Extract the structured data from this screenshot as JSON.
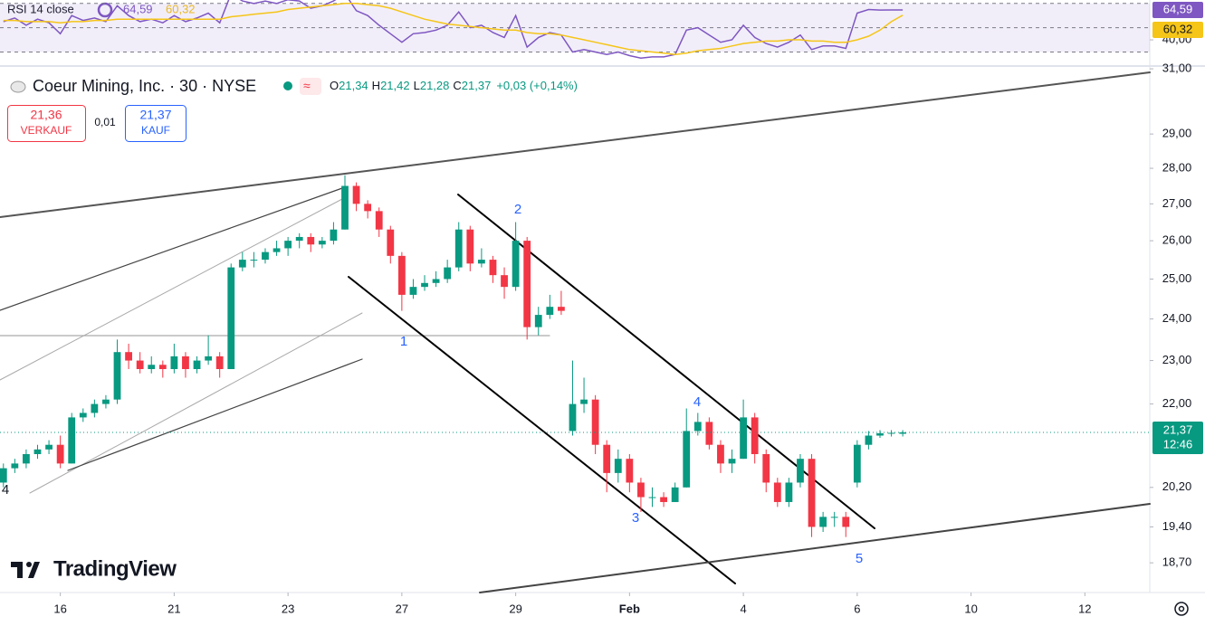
{
  "chart_data": {
    "type": "candlestick",
    "symbol": "Coeur Mining, Inc. · 30 · NYSE",
    "legend": {
      "o": "O",
      "open": "21,34",
      "h": "H",
      "high": "21,42",
      "l": "L",
      "low": "21,28",
      "c": "C",
      "close": "21,37",
      "change": "+0,03 (+0,14%)"
    },
    "sell": {
      "price": "21,36",
      "label": "VERKAUF"
    },
    "spread": "0,01",
    "buy": {
      "price": "21,37",
      "label": "KAUF"
    },
    "last_price_label": "21,37",
    "countdown": "12:46",
    "up_color": "#089981",
    "down_color": "#f23645",
    "log_scale": true,
    "xlim": [
      -0.3,
      100.7
    ],
    "xticks": [
      {
        "value": 5,
        "label": "16"
      },
      {
        "value": 15,
        "label": "21"
      },
      {
        "value": 25,
        "label": "23"
      },
      {
        "value": 35,
        "label": "27"
      },
      {
        "value": 45,
        "label": "29"
      },
      {
        "value": 55,
        "label": "Feb"
      },
      {
        "value": 65,
        "label": "4"
      },
      {
        "value": 75,
        "label": "6"
      },
      {
        "value": 85,
        "label": "10"
      },
      {
        "value": 95,
        "label": "12"
      }
    ],
    "ylim": [
      18.14,
      31.06
    ],
    "yticks": [
      {
        "value": 18.7,
        "label": "18,70"
      },
      {
        "value": 19.4,
        "label": "19,40"
      },
      {
        "value": 20.2,
        "label": "20,20"
      },
      {
        "value": 22,
        "label": "22,00"
      },
      {
        "value": 23,
        "label": "23,00"
      },
      {
        "value": 24,
        "label": "24,00"
      },
      {
        "value": 25,
        "label": "25,00"
      },
      {
        "value": 26,
        "label": "26,00"
      },
      {
        "value": 27,
        "label": "27,00"
      },
      {
        "value": 28,
        "label": "28,00"
      },
      {
        "value": 29,
        "label": "29,00"
      },
      {
        "value": 31,
        "label": "31,00"
      }
    ],
    "ohlc": [
      [
        20.3,
        20.7,
        20.2,
        20.6
      ],
      [
        20.6,
        20.8,
        20.5,
        20.7
      ],
      [
        20.7,
        21.0,
        20.6,
        20.9
      ],
      [
        20.9,
        21.1,
        20.8,
        21.0
      ],
      [
        21.0,
        21.2,
        20.9,
        21.1
      ],
      [
        21.1,
        21.3,
        20.6,
        20.7
      ],
      [
        20.7,
        21.8,
        20.7,
        21.7
      ],
      [
        21.7,
        21.9,
        21.6,
        21.8
      ],
      [
        21.8,
        22.1,
        21.7,
        22.0
      ],
      [
        22.0,
        22.2,
        21.9,
        22.1
      ],
      [
        22.1,
        23.5,
        22.0,
        23.2
      ],
      [
        23.2,
        23.4,
        22.8,
        23.0
      ],
      [
        23.0,
        23.2,
        22.7,
        22.8
      ],
      [
        22.8,
        23.1,
        22.7,
        22.9
      ],
      [
        22.9,
        23.0,
        22.6,
        22.8
      ],
      [
        22.8,
        23.4,
        22.7,
        23.1
      ],
      [
        23.1,
        23.2,
        22.6,
        22.8
      ],
      [
        22.8,
        23.1,
        22.7,
        23.0
      ],
      [
        23.0,
        23.6,
        22.9,
        23.1
      ],
      [
        23.1,
        23.2,
        22.6,
        22.8
      ],
      [
        22.8,
        25.4,
        22.8,
        25.3
      ],
      [
        25.3,
        25.7,
        25.2,
        25.5
      ],
      [
        25.5,
        25.7,
        25.3,
        25.5
      ],
      [
        25.5,
        25.8,
        25.4,
        25.7
      ],
      [
        25.7,
        26.0,
        25.6,
        25.8
      ],
      [
        25.8,
        26.1,
        25.6,
        26.0
      ],
      [
        26.0,
        26.2,
        25.8,
        26.1
      ],
      [
        26.1,
        26.2,
        25.7,
        25.9
      ],
      [
        25.9,
        26.1,
        25.8,
        26.0
      ],
      [
        26.0,
        26.5,
        25.9,
        26.3
      ],
      [
        26.3,
        27.8,
        26.3,
        27.5
      ],
      [
        27.5,
        27.6,
        26.8,
        27.0
      ],
      [
        27.0,
        27.1,
        26.6,
        26.8
      ],
      [
        26.8,
        26.9,
        26.1,
        26.3
      ],
      [
        26.3,
        26.4,
        25.4,
        25.6
      ],
      [
        25.6,
        25.7,
        24.2,
        24.6
      ],
      [
        24.6,
        25.0,
        24.5,
        24.8
      ],
      [
        24.8,
        25.1,
        24.7,
        24.9
      ],
      [
        24.9,
        25.2,
        24.8,
        25.0
      ],
      [
        25.0,
        25.5,
        24.9,
        25.3
      ],
      [
        25.3,
        26.5,
        25.2,
        26.3
      ],
      [
        26.3,
        26.4,
        25.2,
        25.4
      ],
      [
        25.4,
        25.8,
        25.3,
        25.5
      ],
      [
        25.5,
        25.6,
        24.9,
        25.1
      ],
      [
        25.1,
        25.3,
        24.5,
        24.8
      ],
      [
        24.8,
        26.5,
        24.7,
        26.0
      ],
      [
        26.0,
        26.1,
        23.5,
        23.8
      ],
      [
        23.8,
        24.3,
        23.6,
        24.1
      ],
      [
        24.1,
        24.6,
        24.0,
        24.3
      ],
      [
        24.3,
        24.7,
        24.1,
        24.2
      ],
      [
        21.4,
        23.0,
        21.3,
        22.0
      ],
      [
        22.0,
        22.6,
        21.8,
        22.1
      ],
      [
        22.1,
        22.2,
        20.9,
        21.1
      ],
      [
        21.1,
        21.2,
        20.1,
        20.5
      ],
      [
        20.5,
        21.0,
        20.3,
        20.8
      ],
      [
        20.8,
        20.9,
        20.1,
        20.3
      ],
      [
        20.3,
        20.4,
        19.7,
        20.0
      ],
      [
        20.0,
        20.2,
        19.8,
        20.0
      ],
      [
        20.0,
        20.1,
        19.8,
        19.9
      ],
      [
        19.9,
        20.3,
        19.9,
        20.2
      ],
      [
        20.2,
        21.9,
        20.2,
        21.4
      ],
      [
        21.4,
        21.8,
        21.3,
        21.6
      ],
      [
        21.6,
        21.7,
        21.0,
        21.1
      ],
      [
        21.1,
        21.2,
        20.5,
        20.7
      ],
      [
        20.7,
        21.0,
        20.5,
        20.8
      ],
      [
        20.8,
        22.1,
        20.8,
        21.7
      ],
      [
        21.7,
        21.8,
        20.7,
        20.9
      ],
      [
        20.9,
        21.0,
        20.1,
        20.3
      ],
      [
        20.3,
        20.4,
        19.8,
        19.9
      ],
      [
        19.9,
        20.4,
        19.8,
        20.3
      ],
      [
        20.3,
        20.9,
        20.2,
        20.8
      ],
      [
        20.8,
        20.9,
        19.2,
        19.4
      ],
      [
        19.4,
        19.7,
        19.3,
        19.6
      ],
      [
        19.6,
        19.7,
        19.4,
        19.6
      ],
      [
        19.6,
        19.7,
        19.2,
        19.4
      ],
      [
        20.3,
        21.2,
        20.2,
        21.1
      ],
      [
        21.1,
        21.4,
        21.0,
        21.3
      ],
      [
        21.3,
        21.42,
        21.25,
        21.35
      ],
      [
        21.35,
        21.42,
        21.28,
        21.36
      ],
      [
        21.34,
        21.42,
        21.28,
        21.37
      ]
    ],
    "wave_labels": [
      "1",
      "2",
      "3",
      "4",
      "5",
      "4"
    ],
    "watermark": "TradingView",
    "rsi": {
      "title": "RSI 14 close",
      "ylim": [
        24.4,
        72.8
      ],
      "yticks": [
        {
          "value": 40,
          "label": "40,00"
        }
      ],
      "bands": [
        70,
        50,
        30
      ],
      "series": [
        {
          "name": "RSI",
          "color": "#7e57c2",
          "last_label": "64,59",
          "values": [
            55,
            58,
            52,
            57,
            54,
            45,
            60,
            56,
            58,
            55,
            68,
            60,
            55,
            57,
            54,
            60,
            55,
            58,
            62,
            54,
            78,
            72,
            70,
            72,
            70,
            73,
            72,
            66,
            68,
            72,
            78,
            64,
            60,
            52,
            45,
            38,
            45,
            46,
            48,
            52,
            63,
            50,
            52,
            46,
            42,
            60,
            34,
            42,
            46,
            44,
            30,
            32,
            30,
            28,
            30,
            27,
            25,
            26,
            26,
            28,
            48,
            50,
            44,
            38,
            40,
            52,
            42,
            37,
            34,
            38,
            44,
            32,
            35,
            35,
            33,
            62,
            65,
            64.5,
            64.6,
            64.59
          ]
        },
        {
          "name": "MA",
          "color": "#f5c518",
          "last_label": "60,32",
          "values": [
            56,
            56,
            55,
            55,
            55,
            54,
            55,
            55,
            56,
            56,
            57,
            57,
            57,
            57,
            57,
            57,
            57,
            57,
            57,
            57,
            59,
            60,
            61,
            62,
            63,
            65,
            66,
            67,
            68,
            69,
            70,
            70,
            69,
            68,
            66,
            63,
            60,
            57,
            55,
            53,
            52,
            51,
            50,
            49,
            48,
            48,
            46,
            45,
            45,
            44,
            42,
            40,
            38,
            36,
            34,
            32,
            31,
            30,
            29,
            28,
            29,
            31,
            32,
            33,
            35,
            37,
            38,
            39,
            39,
            40,
            40,
            39,
            39,
            38,
            38,
            40,
            43,
            48,
            55,
            60.32
          ]
        }
      ]
    }
  }
}
